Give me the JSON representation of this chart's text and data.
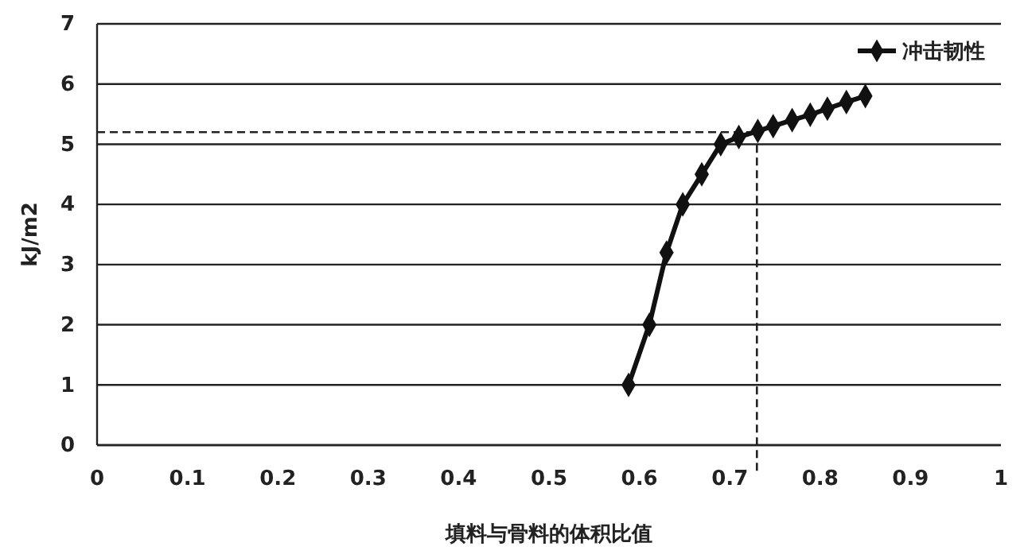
{
  "chart_data": {
    "type": "line",
    "xlabel": "填料与骨料的体积比值",
    "ylabel": "kJ/m2",
    "xlim": [
      0,
      1
    ],
    "xticks": [
      0,
      0.1,
      0.2,
      0.3,
      0.4,
      0.5,
      0.6,
      0.7,
      0.8,
      0.9,
      1
    ],
    "ylim": [
      0,
      7
    ],
    "yticks": [
      0,
      1,
      2,
      3,
      4,
      5,
      6,
      7
    ],
    "series": [
      {
        "name": "冲击韧性",
        "color": "#111111",
        "x": [
          0.588,
          0.611,
          0.63,
          0.648,
          0.669,
          0.69,
          0.71,
          0.731,
          0.748,
          0.769,
          0.789,
          0.808,
          0.829,
          0.85
        ],
        "values": [
          1.0,
          2.0,
          3.2,
          4.0,
          4.5,
          5.0,
          5.12,
          5.22,
          5.3,
          5.4,
          5.49,
          5.59,
          5.7,
          5.8
        ]
      }
    ],
    "ref_lines": [
      {
        "axis": "y",
        "value": 5.2,
        "line_style": "dashed"
      },
      {
        "axis": "x",
        "value": 0.73,
        "line_style": "dashed"
      }
    ],
    "grid": "y",
    "legend": "top right",
    "marker": "diamond",
    "line_style": "solid"
  }
}
